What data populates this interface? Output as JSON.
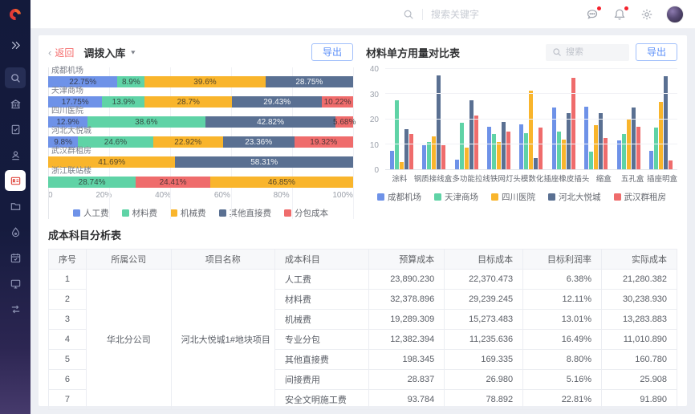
{
  "header": {
    "search_placeholder": "搜索关键字"
  },
  "sidebar": {
    "items": [
      {
        "key": "expand-icon",
        "style": "expand"
      },
      {
        "key": "search-icon",
        "style": "subtle-bg"
      },
      {
        "key": "building-icon",
        "style": ""
      },
      {
        "key": "document-check-icon",
        "style": ""
      },
      {
        "key": "user-badge-icon",
        "style": ""
      },
      {
        "key": "id-card-icon",
        "style": "active"
      },
      {
        "key": "folder-icon",
        "style": ""
      },
      {
        "key": "drop-icon",
        "style": ""
      },
      {
        "key": "calendar-icon",
        "style": ""
      },
      {
        "key": "monitor-icon",
        "style": ""
      },
      {
        "key": "transfer-icon",
        "style": ""
      }
    ]
  },
  "left_panel": {
    "back_label": "返回",
    "title": "调拨入库",
    "export_label": "导出"
  },
  "right_panel": {
    "title": "材料单方用量对比表",
    "search_placeholder": "搜索",
    "export_label": "导出"
  },
  "series_colors": {
    "人工费": "#6e92e8",
    "材料费": "#5fd3a6",
    "机械费": "#f9b52c",
    "其他直接费": "#5a7092",
    "分包成本": "#ef6c6c"
  },
  "chart_data": [
    {
      "type": "bar",
      "variant": "horizontal-stacked-percent",
      "legend": [
        "人工费",
        "材料费",
        "机械费",
        "其他直接费",
        "分包成本"
      ],
      "legend_keys": [
        "labor",
        "material",
        "machinery",
        "other-direct",
        "subcontract"
      ],
      "x_ticks": [
        "0",
        "20%",
        "40%",
        "60%",
        "80%",
        "100%"
      ],
      "categories": [
        "成都机场",
        "天津商场",
        "四川医院",
        "河北大悦城",
        "武汉群租房",
        "浙江联站楼"
      ],
      "rows": [
        {
          "category": "成都机场",
          "segments": [
            [
              "人工费",
              22.75
            ],
            [
              "材料费",
              8.9
            ],
            [
              "机械费",
              39.6
            ],
            [
              "其他直接费",
              28.75
            ]
          ]
        },
        {
          "category": "天津商场",
          "segments": [
            [
              "人工费",
              17.75
            ],
            [
              "材料费",
              13.9
            ],
            [
              "机械费",
              28.7
            ],
            [
              "其他直接费",
              29.43
            ],
            [
              "分包成本",
              10.22
            ]
          ]
        },
        {
          "category": "四川医院",
          "segments": [
            [
              "人工费",
              12.9
            ],
            [
              "材料费",
              38.6
            ],
            [
              "其他直接费",
              42.82
            ],
            [
              "分包成本",
              5.68
            ]
          ]
        },
        {
          "category": "河北大悦城",
          "segments": [
            [
              "人工费",
              9.8
            ],
            [
              "材料费",
              24.6
            ],
            [
              "机械费",
              22.92
            ],
            [
              "其他直接费",
              23.36
            ],
            [
              "分包成本",
              19.32
            ]
          ]
        },
        {
          "category": "武汉群租房",
          "segments": [
            [
              "机械费",
              41.69
            ],
            [
              "其他直接费",
              58.31
            ]
          ]
        },
        {
          "category": "浙江联站楼",
          "segments": [
            [
              "材料费",
              28.74
            ],
            [
              "分包成本",
              24.41
            ],
            [
              "机械费",
              46.85
            ]
          ]
        }
      ],
      "value_suffix": "%"
    },
    {
      "type": "bar",
      "variant": "grouped-vertical",
      "title": "材料单方用量对比表",
      "categories": [
        "涂料",
        "钢质接线盒",
        "多功能拉线",
        "铁网灯头",
        "模数化插座",
        "橡皮插头",
        "缩盒",
        "五孔盒",
        "插座明盒"
      ],
      "ylim": [
        0,
        40
      ],
      "y_ticks": [
        0,
        10,
        20,
        30,
        40
      ],
      "grid": true,
      "legend_position": "bottom",
      "series": [
        {
          "name": "成都机场",
          "key": "chengdu-airport",
          "color": "#6e92e8",
          "values": [
            7.5,
            9.5,
            4,
            17,
            18,
            24.5,
            25,
            11.5,
            7.5
          ]
        },
        {
          "name": "天津商场",
          "key": "tianjin-mall",
          "color": "#5fd3a6",
          "values": [
            27.5,
            11,
            18.5,
            14,
            14.5,
            15,
            7,
            14,
            16.5
          ]
        },
        {
          "name": "四川医院",
          "key": "sichuan-hospital",
          "color": "#f9b52c",
          "values": [
            3,
            13,
            8.5,
            11,
            31.5,
            12,
            17.5,
            20,
            27
          ]
        },
        {
          "name": "河北大悦城",
          "key": "hebei-joy-city",
          "color": "#5a7092",
          "values": [
            16,
            37.5,
            27.5,
            19,
            4.5,
            22.5,
            22.5,
            24.5,
            37
          ]
        },
        {
          "name": "武汉群租房",
          "key": "wuhan-rental",
          "color": "#ef6c6c",
          "values": [
            14,
            9.5,
            21.5,
            15,
            16.5,
            36.5,
            12.5,
            17,
            3.5
          ]
        }
      ]
    }
  ],
  "table": {
    "title": "成本科目分析表",
    "columns": [
      {
        "label": "序号",
        "align": "c",
        "width": "6%"
      },
      {
        "label": "所属公司",
        "align": "c",
        "width": "13.5%"
      },
      {
        "label": "项目名称",
        "align": "c",
        "width": "16.5%"
      },
      {
        "label": "成本科目",
        "align": "l",
        "width": "15%"
      },
      {
        "label": "预算成本",
        "align": "r",
        "width": "12%"
      },
      {
        "label": "目标成本",
        "align": "r",
        "width": "12.5%"
      },
      {
        "label": "目标利润率",
        "align": "r",
        "width": "12.5%"
      },
      {
        "label": "实际成本",
        "align": "r",
        "width": "12%"
      }
    ],
    "company": "华北分公司",
    "project": "河北大悦城1#地块项目",
    "rows": [
      {
        "no": "1",
        "subject": "人工费",
        "budget": "23,890.230",
        "target": "22,370.473",
        "margin": "6.38%",
        "actual": "21,280.382"
      },
      {
        "no": "2",
        "subject": "材料费",
        "budget": "32,378.896",
        "target": "29,239.245",
        "margin": "12.11%",
        "actual": "30,238.930"
      },
      {
        "no": "3",
        "subject": "机械费",
        "budget": "19,289.309",
        "target": "15,273.483",
        "margin": "13.01%",
        "actual": "13,283.883"
      },
      {
        "no": "4",
        "subject": "专业分包",
        "budget": "12,382.394",
        "target": "11,235.636",
        "margin": "16.49%",
        "actual": "11,010.890"
      },
      {
        "no": "5",
        "subject": "其他直接费",
        "budget": "198.345",
        "target": "169.335",
        "margin": "8.80%",
        "actual": "160.780"
      },
      {
        "no": "6",
        "subject": "间接费用",
        "budget": "28.837",
        "target": "26.980",
        "margin": "5.16%",
        "actual": "25.908"
      },
      {
        "no": "7",
        "subject": "安全文明施工费",
        "budget": "93.784",
        "target": "78.892",
        "margin": "22.81%",
        "actual": "91.890"
      }
    ]
  }
}
